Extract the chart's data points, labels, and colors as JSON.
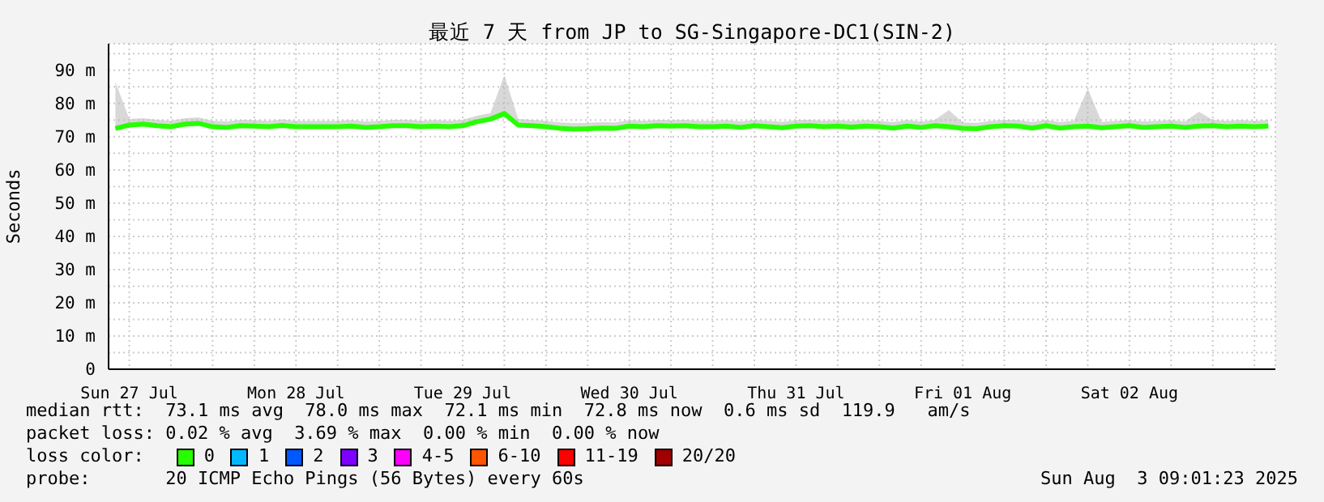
{
  "chart_data": {
    "type": "line",
    "title": "最近 7 天 from JP to SG-Singapore-DC1(SIN-2)",
    "ylabel": "Seconds",
    "x": [
      "2025-07-27T10:00",
      "2025-07-27T12:00",
      "2025-07-27T14:00",
      "2025-07-27T16:00",
      "2025-07-27T18:00",
      "2025-07-27T20:00",
      "2025-07-27T22:00",
      "2025-07-28T00:00",
      "2025-07-28T02:00",
      "2025-07-28T04:00",
      "2025-07-28T06:00",
      "2025-07-28T08:00",
      "2025-07-28T10:00",
      "2025-07-28T12:00",
      "2025-07-28T14:00",
      "2025-07-28T16:00",
      "2025-07-28T18:00",
      "2025-07-28T20:00",
      "2025-07-28T22:00",
      "2025-07-29T00:00",
      "2025-07-29T02:00",
      "2025-07-29T04:00",
      "2025-07-29T06:00",
      "2025-07-29T08:00",
      "2025-07-29T10:00",
      "2025-07-29T12:00",
      "2025-07-29T14:00",
      "2025-07-29T16:00",
      "2025-07-29T18:00",
      "2025-07-29T20:00",
      "2025-07-29T22:00",
      "2025-07-30T00:00",
      "2025-07-30T02:00",
      "2025-07-30T04:00",
      "2025-07-30T06:00",
      "2025-07-30T08:00",
      "2025-07-30T10:00",
      "2025-07-30T12:00",
      "2025-07-30T14:00",
      "2025-07-30T16:00",
      "2025-07-30T18:00",
      "2025-07-30T20:00",
      "2025-07-30T22:00",
      "2025-07-31T00:00",
      "2025-07-31T02:00",
      "2025-07-31T04:00",
      "2025-07-31T06:00",
      "2025-07-31T08:00",
      "2025-07-31T10:00",
      "2025-07-31T12:00",
      "2025-07-31T14:00",
      "2025-07-31T16:00",
      "2025-07-31T18:00",
      "2025-07-31T20:00",
      "2025-07-31T22:00",
      "2025-08-01T00:00",
      "2025-08-01T02:00",
      "2025-08-01T04:00",
      "2025-08-01T06:00",
      "2025-08-01T08:00",
      "2025-08-01T10:00",
      "2025-08-01T12:00",
      "2025-08-01T14:00",
      "2025-08-01T16:00",
      "2025-08-01T18:00",
      "2025-08-01T20:00",
      "2025-08-01T22:00",
      "2025-08-02T00:00",
      "2025-08-02T02:00",
      "2025-08-02T04:00",
      "2025-08-02T06:00",
      "2025-08-02T08:00",
      "2025-08-02T10:00",
      "2025-08-02T12:00",
      "2025-08-02T14:00",
      "2025-08-02T16:00",
      "2025-08-02T18:00",
      "2025-08-02T20:00",
      "2025-08-02T22:00",
      "2025-08-03T00:00",
      "2025-08-03T02:00",
      "2025-08-03T04:00",
      "2025-08-03T06:00",
      "2025-08-03T08:00"
    ],
    "series": [
      {
        "name": "0",
        "color": "#26ff00",
        "values": [
          72.5,
          73.5,
          73.8,
          73.3,
          73.0,
          73.8,
          74.0,
          73.0,
          72.8,
          73.3,
          73.2,
          73.0,
          73.4,
          73.0,
          73.0,
          73.0,
          73.0,
          73.2,
          72.8,
          73.0,
          73.3,
          73.3,
          73.0,
          73.2,
          73.0,
          73.3,
          74.5,
          75.3,
          77.0,
          73.5,
          73.3,
          73.0,
          72.5,
          72.3,
          72.4,
          72.6,
          72.5,
          73.2,
          73.0,
          73.3,
          73.2,
          73.3,
          73.0,
          73.0,
          73.2,
          72.8,
          73.3,
          73.0,
          72.7,
          73.2,
          73.3,
          73.0,
          73.2,
          72.9,
          73.2,
          73.0,
          72.6,
          73.2,
          72.8,
          73.3,
          73.0,
          72.5,
          72.4,
          73.0,
          73.3,
          73.2,
          72.6,
          73.3,
          72.6,
          73.0,
          73.2,
          72.7,
          73.0,
          73.3,
          72.8,
          73.0,
          73.2,
          72.8,
          73.2,
          73.3,
          73.0,
          73.2,
          73.0,
          73.2
        ],
        "upper": [
          86.5,
          75.3,
          75.6,
          75.1,
          74.8,
          75.6,
          75.8,
          74.8,
          74.6,
          75.1,
          75.0,
          74.8,
          75.2,
          74.8,
          74.8,
          74.8,
          74.8,
          75.0,
          74.6,
          74.8,
          75.1,
          75.1,
          74.8,
          75.0,
          74.8,
          75.1,
          76.3,
          77.1,
          88.5,
          75.3,
          75.1,
          74.8,
          74.3,
          74.1,
          74.2,
          74.4,
          74.3,
          75.0,
          74.8,
          75.1,
          75.0,
          75.1,
          74.8,
          74.8,
          75.0,
          74.6,
          75.1,
          74.8,
          74.5,
          75.0,
          75.1,
          74.8,
          75.0,
          74.7,
          75.0,
          74.8,
          74.4,
          75.0,
          74.6,
          75.1,
          78.0,
          74.3,
          74.2,
          74.8,
          75.1,
          75.0,
          74.4,
          75.1,
          74.4,
          74.8,
          84.5,
          74.5,
          74.8,
          75.1,
          74.6,
          74.8,
          75.0,
          74.6,
          77.5,
          75.1,
          74.8,
          75.0,
          74.8,
          75.0
        ],
        "lower": [
          71.9,
          72.9,
          73.2,
          72.7,
          72.4,
          73.2,
          73.4,
          72.4,
          72.2,
          72.7,
          72.6,
          72.4,
          72.8,
          72.4,
          72.4,
          72.4,
          72.4,
          72.6,
          72.2,
          72.4,
          72.7,
          72.7,
          72.4,
          72.6,
          72.4,
          72.7,
          73.9,
          74.7,
          76.4,
          72.9,
          72.7,
          72.4,
          71.9,
          71.7,
          71.8,
          72.0,
          71.9,
          72.6,
          72.4,
          72.7,
          72.6,
          72.7,
          72.4,
          72.4,
          72.6,
          72.2,
          72.7,
          72.4,
          72.1,
          72.6,
          72.7,
          72.4,
          72.6,
          72.3,
          72.6,
          72.4,
          72.0,
          72.6,
          72.2,
          72.7,
          72.4,
          71.9,
          71.8,
          72.4,
          72.7,
          72.6,
          72.0,
          72.7,
          72.0,
          72.4,
          72.6,
          72.1,
          72.4,
          72.7,
          72.2,
          72.4,
          72.6,
          72.2,
          72.6,
          72.7,
          72.4,
          72.6,
          72.4,
          72.6
        ]
      },
      {
        "name": "1",
        "color": "#00b8ff",
        "values": [
          null,
          null,
          null,
          null,
          null,
          null,
          null,
          null,
          null,
          null,
          null,
          null,
          null,
          null,
          null,
          null,
          null,
          null,
          null,
          null,
          null,
          null,
          null,
          null,
          null,
          null,
          null,
          null,
          null,
          null,
          null,
          null,
          null,
          null,
          null,
          null,
          null,
          null,
          null,
          null,
          null,
          null,
          null,
          null,
          null,
          null,
          null,
          null,
          null,
          null,
          null,
          null,
          null,
          null,
          null,
          null,
          null,
          null,
          null,
          null,
          null,
          null,
          null,
          null,
          null,
          null,
          null,
          null,
          null,
          null,
          null,
          null,
          null,
          null,
          null,
          null,
          null,
          null,
          null,
          null,
          null,
          null,
          null,
          null
        ]
      },
      {
        "name": "2",
        "color": "#0059ff",
        "values": [
          null,
          null,
          null,
          null,
          null,
          null,
          null,
          null,
          null,
          null,
          null,
          null,
          null,
          null,
          null,
          null,
          null,
          null,
          null,
          null,
          null,
          null,
          null,
          null,
          null,
          null,
          null,
          null,
          null,
          null,
          null,
          null,
          null,
          null,
          null,
          null,
          null,
          null,
          null,
          null,
          null,
          null,
          null,
          null,
          null,
          null,
          null,
          null,
          null,
          null,
          null,
          null,
          null,
          null,
          null,
          null,
          null,
          null,
          null,
          null,
          null,
          null,
          null,
          null,
          null,
          null,
          null,
          null,
          null,
          null,
          null,
          null,
          null,
          null,
          null,
          null,
          null,
          null,
          null,
          null,
          null,
          null,
          null,
          null
        ]
      },
      {
        "name": "3",
        "color": "#7e00ff",
        "values": [
          null,
          null,
          null,
          null,
          null,
          null,
          null,
          null,
          null,
          null,
          null,
          null,
          null,
          null,
          null,
          null,
          null,
          null,
          null,
          null,
          null,
          null,
          null,
          null,
          null,
          null,
          null,
          null,
          null,
          null,
          null,
          null,
          null,
          null,
          null,
          null,
          null,
          null,
          null,
          null,
          null,
          null,
          null,
          null,
          null,
          null,
          null,
          null,
          null,
          null,
          null,
          null,
          null,
          null,
          null,
          null,
          null,
          null,
          null,
          null,
          null,
          null,
          null,
          null,
          null,
          null,
          null,
          null,
          null,
          null,
          null,
          null,
          null,
          null,
          null,
          null,
          null,
          null,
          null,
          null,
          null,
          null,
          null,
          null
        ]
      },
      {
        "name": "4-5",
        "color": "#ff00ff",
        "values": [
          null,
          null,
          null,
          null,
          null,
          null,
          null,
          null,
          null,
          null,
          null,
          null,
          null,
          null,
          null,
          null,
          null,
          null,
          null,
          null,
          null,
          null,
          null,
          null,
          null,
          null,
          null,
          null,
          null,
          null,
          null,
          null,
          null,
          null,
          null,
          null,
          null,
          null,
          null,
          null,
          null,
          null,
          null,
          null,
          null,
          null,
          null,
          null,
          null,
          null,
          null,
          null,
          null,
          null,
          null,
          null,
          null,
          null,
          null,
          null,
          null,
          null,
          null,
          null,
          null,
          null,
          null,
          null,
          null,
          null,
          null,
          null,
          null,
          null,
          null,
          null,
          null,
          null,
          null,
          null,
          null,
          null,
          null,
          null
        ]
      },
      {
        "name": "6-10",
        "color": "#ff5500",
        "values": [
          null,
          null,
          null,
          null,
          null,
          null,
          null,
          null,
          null,
          null,
          null,
          null,
          null,
          null,
          null,
          null,
          null,
          null,
          null,
          null,
          null,
          null,
          null,
          null,
          null,
          null,
          null,
          null,
          null,
          null,
          null,
          null,
          null,
          null,
          null,
          null,
          null,
          null,
          null,
          null,
          null,
          null,
          null,
          null,
          null,
          null,
          null,
          null,
          null,
          null,
          null,
          null,
          null,
          null,
          null,
          null,
          null,
          null,
          null,
          null,
          null,
          null,
          null,
          null,
          null,
          null,
          null,
          null,
          null,
          null,
          null,
          null,
          null,
          null,
          null,
          null,
          null,
          null,
          null,
          null,
          null,
          null,
          null,
          null
        ]
      },
      {
        "name": "11-19",
        "color": "#ff0000",
        "values": [
          null,
          null,
          null,
          null,
          null,
          null,
          null,
          null,
          null,
          null,
          null,
          null,
          null,
          null,
          null,
          null,
          null,
          null,
          null,
          null,
          null,
          null,
          null,
          null,
          null,
          null,
          null,
          null,
          null,
          null,
          null,
          null,
          null,
          null,
          null,
          null,
          null,
          null,
          null,
          null,
          null,
          null,
          null,
          null,
          null,
          null,
          null,
          null,
          null,
          null,
          null,
          null,
          null,
          null,
          null,
          null,
          null,
          null,
          null,
          null,
          null,
          null,
          null,
          null,
          null,
          null,
          null,
          null,
          null,
          null,
          null,
          null,
          null,
          null,
          null,
          null,
          null,
          null,
          null,
          null,
          null,
          null,
          null,
          null
        ]
      },
      {
        "name": "20/20",
        "color": "#a10000",
        "values": [
          null,
          null,
          null,
          null,
          null,
          null,
          null,
          null,
          null,
          null,
          null,
          null,
          null,
          null,
          null,
          null,
          null,
          null,
          null,
          null,
          null,
          null,
          null,
          null,
          null,
          null,
          null,
          null,
          null,
          null,
          null,
          null,
          null,
          null,
          null,
          null,
          null,
          null,
          null,
          null,
          null,
          null,
          null,
          null,
          null,
          null,
          null,
          null,
          null,
          null,
          null,
          null,
          null,
          null,
          null,
          null,
          null,
          null,
          null,
          null,
          null,
          null,
          null,
          null,
          null,
          null,
          null,
          null,
          null,
          null,
          null,
          null,
          null,
          null,
          null,
          null,
          null,
          null,
          null,
          null,
          null,
          null,
          null,
          null
        ]
      }
    ],
    "legend_title": "loss color:",
    "legend": "bottom",
    "grid": true,
    "xlim": [
      "2025-07-27T09:01",
      "2025-08-03T09:01"
    ],
    "xticks": [
      {
        "value": "2025-07-27T12:00",
        "label": "Sun 27 Jul"
      },
      {
        "value": "2025-07-27T18:00",
        "label": null
      },
      {
        "value": "2025-07-28T00:00",
        "label": null
      },
      {
        "value": "2025-07-28T06:00",
        "label": null
      },
      {
        "value": "2025-07-28T12:00",
        "label": "Mon 28 Jul"
      },
      {
        "value": "2025-07-28T18:00",
        "label": null
      },
      {
        "value": "2025-07-29T00:00",
        "label": null
      },
      {
        "value": "2025-07-29T06:00",
        "label": null
      },
      {
        "value": "2025-07-29T12:00",
        "label": "Tue 29 Jul"
      },
      {
        "value": "2025-07-29T18:00",
        "label": null
      },
      {
        "value": "2025-07-30T00:00",
        "label": null
      },
      {
        "value": "2025-07-30T06:00",
        "label": null
      },
      {
        "value": "2025-07-30T12:00",
        "label": "Wed 30 Jul"
      },
      {
        "value": "2025-07-30T18:00",
        "label": null
      },
      {
        "value": "2025-07-31T00:00",
        "label": null
      },
      {
        "value": "2025-07-31T06:00",
        "label": null
      },
      {
        "value": "2025-07-31T12:00",
        "label": "Thu 31 Jul"
      },
      {
        "value": "2025-07-31T18:00",
        "label": null
      },
      {
        "value": "2025-08-01T00:00",
        "label": null
      },
      {
        "value": "2025-08-01T06:00",
        "label": null
      },
      {
        "value": "2025-08-01T12:00",
        "label": "Fri 01 Aug"
      },
      {
        "value": "2025-08-01T18:00",
        "label": null
      },
      {
        "value": "2025-08-02T00:00",
        "label": null
      },
      {
        "value": "2025-08-02T06:00",
        "label": null
      },
      {
        "value": "2025-08-02T12:00",
        "label": "Sat 02 Aug"
      },
      {
        "value": "2025-08-02T18:00",
        "label": null
      },
      {
        "value": "2025-08-03T00:00",
        "label": null
      },
      {
        "value": "2025-08-03T06:00",
        "label": null
      }
    ],
    "ylim": [
      0,
      98
    ],
    "yticks": [
      0,
      {
        "value": 5,
        "label": null
      },
      {
        "value": 10,
        "label": "10 m"
      },
      {
        "value": 15,
        "label": null
      },
      {
        "value": 20,
        "label": "20 m"
      },
      {
        "value": 25,
        "label": null
      },
      {
        "value": 30,
        "label": "30 m"
      },
      {
        "value": 35,
        "label": null
      },
      {
        "value": 40,
        "label": "40 m"
      },
      {
        "value": 45,
        "label": null
      },
      {
        "value": 50,
        "label": "50 m"
      },
      {
        "value": 55,
        "label": null
      },
      {
        "value": 60,
        "label": "60 m"
      },
      {
        "value": 65,
        "label": null
      },
      {
        "value": 70,
        "label": "70 m"
      },
      {
        "value": 75,
        "label": null
      },
      {
        "value": 80,
        "label": "80 m"
      },
      {
        "value": 85,
        "label": null
      },
      {
        "value": 90,
        "label": "90 m"
      },
      {
        "value": 95,
        "label": null
      }
    ],
    "annotations": [
      "median rtt:  73.1 ms avg  78.0 ms max  72.1 ms min  72.8 ms now  0.6 ms sd  119.9   am/s",
      "packet loss: 0.02 % avg  3.69 % max  0.00 % min  0.00 % now",
      "probe:       20 ICMP Echo Pings (56 Bytes) every 60s",
      "Sun Aug  3 09:01:23 2025"
    ]
  }
}
